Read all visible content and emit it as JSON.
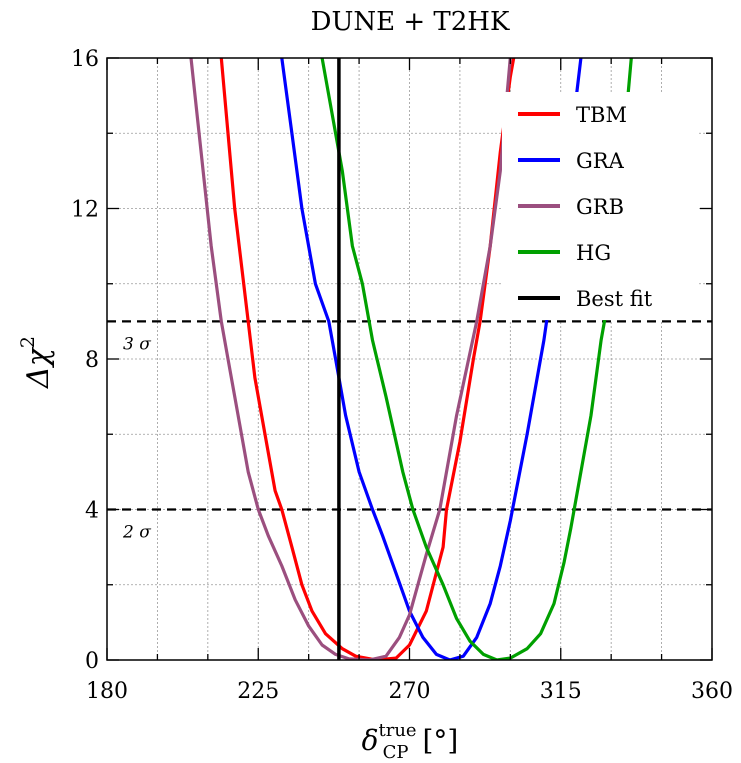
{
  "chart_data": {
    "type": "line",
    "title": "DUNE + T2HK",
    "xlabel": {
      "symbol": "δ",
      "sup": "true",
      "sub": "CP",
      "unit": "[°]"
    },
    "ylabel": {
      "symbol": "Δχ",
      "sup": "2"
    },
    "xlim": [
      180,
      360
    ],
    "ylim": [
      0,
      16
    ],
    "xticks": [
      180,
      225,
      270,
      315,
      360
    ],
    "yticks": [
      0,
      4,
      8,
      12,
      16
    ],
    "x_minor_step": 15,
    "y_minor_step": 2,
    "grid": true,
    "legend_position": "top-right",
    "series": [
      {
        "name": "TBM",
        "color": "#ff0000",
        "points": [
          [
            214,
            16
          ],
          [
            218,
            12
          ],
          [
            222,
            9
          ],
          [
            224,
            7.5
          ],
          [
            227,
            6
          ],
          [
            230,
            4.5
          ],
          [
            232,
            4
          ],
          [
            235,
            3
          ],
          [
            238,
            2
          ],
          [
            241,
            1.3
          ],
          [
            245,
            0.7
          ],
          [
            250,
            0.3
          ],
          [
            254,
            0.1
          ],
          [
            260,
            0
          ],
          [
            266,
            0.05
          ],
          [
            270,
            0.4
          ],
          [
            275,
            1.3
          ],
          [
            280,
            3
          ],
          [
            281,
            4
          ],
          [
            285,
            5.8
          ],
          [
            289,
            8
          ],
          [
            291,
            9
          ],
          [
            294,
            11
          ],
          [
            297,
            13.5
          ],
          [
            300,
            15.5
          ],
          [
            301,
            16
          ]
        ]
      },
      {
        "name": "GRA",
        "color": "#0000ff",
        "points": [
          [
            232,
            16
          ],
          [
            235,
            14
          ],
          [
            238,
            12
          ],
          [
            242,
            10
          ],
          [
            246,
            9
          ],
          [
            248,
            8
          ],
          [
            251,
            6.5
          ],
          [
            255,
            5
          ],
          [
            259,
            4
          ],
          [
            262,
            3.3
          ],
          [
            266,
            2.3
          ],
          [
            270,
            1.3
          ],
          [
            274,
            0.6
          ],
          [
            278,
            0.15
          ],
          [
            282,
            0
          ],
          [
            286,
            0.1
          ],
          [
            290,
            0.6
          ],
          [
            294,
            1.5
          ],
          [
            297,
            2.5
          ],
          [
            300,
            3.7
          ],
          [
            305,
            6
          ],
          [
            310,
            8.5
          ],
          [
            314,
            11
          ],
          [
            317,
            13
          ],
          [
            321,
            16
          ]
        ]
      },
      {
        "name": "GRB",
        "color": "#9b4f7f",
        "points": [
          [
            205,
            16
          ],
          [
            208,
            13.5
          ],
          [
            211,
            11
          ],
          [
            214,
            9
          ],
          [
            216,
            8
          ],
          [
            219,
            6.5
          ],
          [
            222,
            5
          ],
          [
            225,
            4
          ],
          [
            228,
            3.3
          ],
          [
            232,
            2.5
          ],
          [
            236,
            1.6
          ],
          [
            240,
            0.9
          ],
          [
            244,
            0.4
          ],
          [
            248,
            0.15
          ],
          [
            252,
            0.03
          ],
          [
            258,
            0
          ],
          [
            263,
            0.1
          ],
          [
            267,
            0.6
          ],
          [
            270,
            1.2
          ],
          [
            275,
            2.8
          ],
          [
            279,
            4
          ],
          [
            284,
            6.5
          ],
          [
            290,
            9
          ],
          [
            294,
            11
          ],
          [
            297,
            13
          ],
          [
            300,
            16
          ]
        ]
      },
      {
        "name": "HG",
        "color": "#00a000",
        "points": [
          [
            244,
            16
          ],
          [
            247,
            14.5
          ],
          [
            250,
            13
          ],
          [
            253,
            11
          ],
          [
            256,
            10
          ],
          [
            259,
            8.5
          ],
          [
            263,
            7
          ],
          [
            268,
            5
          ],
          [
            271,
            4
          ],
          [
            275,
            3
          ],
          [
            280,
            2
          ],
          [
            284,
            1.1
          ],
          [
            288,
            0.5
          ],
          [
            292,
            0.15
          ],
          [
            296,
            0
          ],
          [
            300,
            0.05
          ],
          [
            305,
            0.3
          ],
          [
            309,
            0.7
          ],
          [
            313,
            1.5
          ],
          [
            316,
            2.6
          ],
          [
            318,
            3.5
          ],
          [
            321,
            5
          ],
          [
            324,
            6.5
          ],
          [
            327,
            8.5
          ],
          [
            329,
            9.5
          ],
          [
            331,
            11.5
          ],
          [
            334,
            14
          ],
          [
            336,
            16
          ]
        ]
      },
      {
        "name": "Best fit",
        "color": "#000000",
        "vertical_x": 249
      }
    ],
    "reference_lines": [
      {
        "y": 9,
        "label": "3 σ"
      },
      {
        "y": 4,
        "label": "2 σ"
      }
    ]
  }
}
